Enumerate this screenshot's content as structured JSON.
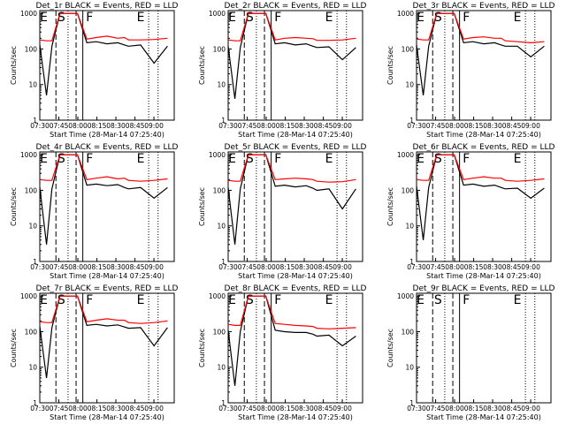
{
  "window": {
    "title": ""
  },
  "common": {
    "xlabel": "Start Time (28-Mar-14 07:25:40)",
    "ylabel": "Counts/sec",
    "xticks": [
      "07:30",
      "07:45",
      "08:00",
      "08:15",
      "08:30",
      "08:45",
      "09:00"
    ],
    "yticks": [
      "1",
      "10",
      "100",
      "1000"
    ],
    "markers": [
      "E",
      "S",
      "F",
      "E"
    ]
  },
  "colors": {
    "events": "#000000",
    "lld": "#ff0000"
  },
  "chart_data": [
    {
      "type": "line",
      "title": "Det_1r BLACK = Events, RED = LLD",
      "xlabel": "Start Time (28-Mar-14 07:25:40)",
      "ylabel": "Counts/sec",
      "x_unit": "minutes after 07:25:40",
      "x": [
        0,
        5,
        9,
        15,
        20,
        28,
        35,
        42,
        50,
        58,
        63,
        66,
        75,
        85,
        95
      ],
      "xlim": [
        0,
        100
      ],
      "ylim": [
        1,
        1200
      ],
      "yscale": "log",
      "series": [
        {
          "name": "BLACK = Events",
          "color": "#000000",
          "values": [
            130,
            5,
            120,
            1000,
            1000,
            1000,
            150,
            160,
            140,
            150,
            130,
            120,
            130,
            40,
            120
          ]
        },
        {
          "name": "RED = LLD",
          "color": "#ff0000",
          "values": [
            180,
            170,
            170,
            1000,
            1000,
            1000,
            190,
            210,
            230,
            200,
            210,
            180,
            180,
            185,
            200
          ]
        }
      ]
    },
    {
      "type": "line",
      "title": "Det_2r BLACK = Events, RED = LLD",
      "xlabel": "Start Time (28-Mar-14 07:25:40)",
      "ylabel": "Counts/sec",
      "x_unit": "minutes after 07:25:40",
      "x": [
        0,
        5,
        9,
        15,
        20,
        28,
        35,
        42,
        50,
        58,
        63,
        66,
        75,
        85,
        95
      ],
      "xlim": [
        0,
        100
      ],
      "ylim": [
        1,
        1200
      ],
      "yscale": "log",
      "series": [
        {
          "name": "BLACK = Events",
          "color": "#000000",
          "values": [
            120,
            4,
            110,
            1000,
            1000,
            1000,
            140,
            150,
            130,
            140,
            120,
            110,
            115,
            50,
            110
          ]
        },
        {
          "name": "RED = LLD",
          "color": "#ff0000",
          "values": [
            180,
            170,
            170,
            1000,
            1000,
            1000,
            180,
            200,
            210,
            200,
            195,
            175,
            175,
            180,
            200
          ]
        }
      ]
    },
    {
      "type": "line",
      "title": "Det_3r BLACK = Events, RED = LLD",
      "xlabel": "Start Time (28-Mar-14 07:25:40)",
      "ylabel": "Counts/sec",
      "x_unit": "minutes after 07:25:40",
      "x": [
        0,
        5,
        9,
        15,
        20,
        28,
        35,
        42,
        50,
        58,
        63,
        66,
        75,
        85,
        95
      ],
      "xlim": [
        0,
        100
      ],
      "ylim": [
        1,
        1200
      ],
      "yscale": "log",
      "series": [
        {
          "name": "BLACK = Events",
          "color": "#000000",
          "values": [
            130,
            5,
            120,
            1000,
            1000,
            1000,
            150,
            160,
            140,
            150,
            130,
            120,
            120,
            60,
            120
          ]
        },
        {
          "name": "RED = LLD",
          "color": "#ff0000",
          "values": [
            190,
            180,
            180,
            1000,
            1000,
            1000,
            190,
            210,
            220,
            200,
            200,
            170,
            160,
            150,
            160
          ]
        }
      ]
    },
    {
      "type": "line",
      "title": "Det_4r BLACK = Events, RED = LLD",
      "xlabel": "Start Time (28-Mar-14 07:25:40)",
      "ylabel": "Counts/sec",
      "x_unit": "minutes after 07:25:40",
      "x": [
        0,
        5,
        9,
        15,
        20,
        28,
        35,
        42,
        50,
        58,
        63,
        66,
        75,
        85,
        95
      ],
      "xlim": [
        0,
        100
      ],
      "ylim": [
        1,
        1200
      ],
      "yscale": "log",
      "series": [
        {
          "name": "BLACK = Events",
          "color": "#000000",
          "values": [
            120,
            3,
            110,
            1000,
            1000,
            1000,
            140,
            150,
            135,
            145,
            120,
            110,
            120,
            60,
            120
          ]
        },
        {
          "name": "RED = LLD",
          "color": "#ff0000",
          "values": [
            200,
            190,
            190,
            1000,
            1000,
            1000,
            200,
            220,
            240,
            210,
            220,
            190,
            180,
            190,
            210
          ]
        }
      ]
    },
    {
      "type": "line",
      "title": "Det_5r BLACK = Events, RED = LLD",
      "xlabel": "Start Time (28-Mar-14 07:25:40)",
      "ylabel": "Counts/sec",
      "x_unit": "minutes after 07:25:40",
      "x": [
        0,
        5,
        9,
        15,
        20,
        28,
        35,
        42,
        50,
        58,
        63,
        66,
        75,
        85,
        95
      ],
      "xlim": [
        0,
        100
      ],
      "ylim": [
        1,
        1200
      ],
      "yscale": "log",
      "series": [
        {
          "name": "BLACK = Events",
          "color": "#000000",
          "values": [
            120,
            3,
            110,
            1000,
            1000,
            1000,
            130,
            140,
            125,
            135,
            115,
            100,
            110,
            30,
            110
          ]
        },
        {
          "name": "RED = LLD",
          "color": "#ff0000",
          "values": [
            190,
            180,
            180,
            1000,
            1000,
            1000,
            200,
            210,
            220,
            210,
            200,
            180,
            170,
            175,
            200
          ]
        }
      ]
    },
    {
      "type": "line",
      "title": "Det_6r BLACK = Events, RED = LLD",
      "xlabel": "Start Time (28-Mar-14 07:25:40)",
      "ylabel": "Counts/sec",
      "x_unit": "minutes after 07:25:40",
      "x": [
        0,
        5,
        9,
        15,
        20,
        28,
        35,
        42,
        50,
        58,
        63,
        66,
        75,
        85,
        95
      ],
      "xlim": [
        0,
        100
      ],
      "ylim": [
        1,
        1200
      ],
      "yscale": "log",
      "series": [
        {
          "name": "BLACK = Events",
          "color": "#000000",
          "values": [
            130,
            4,
            120,
            1000,
            1000,
            1000,
            140,
            150,
            130,
            140,
            120,
            110,
            115,
            60,
            115
          ]
        },
        {
          "name": "RED = LLD",
          "color": "#ff0000",
          "values": [
            200,
            190,
            190,
            1000,
            1000,
            1000,
            200,
            220,
            240,
            220,
            220,
            190,
            180,
            190,
            210
          ]
        }
      ]
    },
    {
      "type": "line",
      "title": "Det_7r BLACK = Events, RED = LLD",
      "xlabel": "Start Time (28-Mar-14 07:25:40)",
      "ylabel": "Counts/sec",
      "x_unit": "minutes after 07:25:40",
      "x": [
        0,
        5,
        9,
        15,
        20,
        28,
        35,
        42,
        50,
        58,
        63,
        66,
        75,
        85,
        95
      ],
      "xlim": [
        0,
        100
      ],
      "ylim": [
        1,
        1200
      ],
      "yscale": "log",
      "series": [
        {
          "name": "BLACK = Events",
          "color": "#000000",
          "values": [
            140,
            5,
            130,
            1000,
            1000,
            1000,
            150,
            160,
            145,
            155,
            135,
            125,
            130,
            40,
            130
          ]
        },
        {
          "name": "RED = LLD",
          "color": "#ff0000",
          "values": [
            190,
            180,
            180,
            1000,
            1000,
            1000,
            190,
            210,
            230,
            210,
            210,
            180,
            170,
            180,
            200
          ]
        }
      ]
    },
    {
      "type": "line",
      "title": "Det_8r BLACK = Events, RED = LLD",
      "xlabel": "Start Time (28-Mar-14 07:25:40)",
      "ylabel": "Counts/sec",
      "x_unit": "minutes after 07:25:40",
      "x": [
        0,
        5,
        9,
        15,
        20,
        28,
        35,
        42,
        50,
        58,
        63,
        66,
        75,
        85,
        95
      ],
      "xlim": [
        0,
        100
      ],
      "ylim": [
        1,
        1200
      ],
      "yscale": "log",
      "series": [
        {
          "name": "BLACK = Events",
          "color": "#000000",
          "values": [
            110,
            3,
            100,
            1000,
            1000,
            1000,
            110,
            100,
            95,
            95,
            85,
            75,
            80,
            40,
            75
          ]
        },
        {
          "name": "RED = LLD",
          "color": "#ff0000",
          "values": [
            160,
            150,
            150,
            1000,
            1000,
            1000,
            170,
            160,
            150,
            145,
            140,
            125,
            120,
            125,
            130
          ]
        }
      ]
    },
    {
      "type": "line",
      "title": "Det_9r BLACK = Events, RED = LLD",
      "xlabel": "Start Time (28-Mar-14 07:25:40)",
      "ylabel": "Counts/sec",
      "x_unit": "minutes after 07:25:40",
      "x": [],
      "xlim": [
        0,
        100
      ],
      "ylim": [
        1,
        1200
      ],
      "yscale": "log",
      "series": []
    }
  ]
}
